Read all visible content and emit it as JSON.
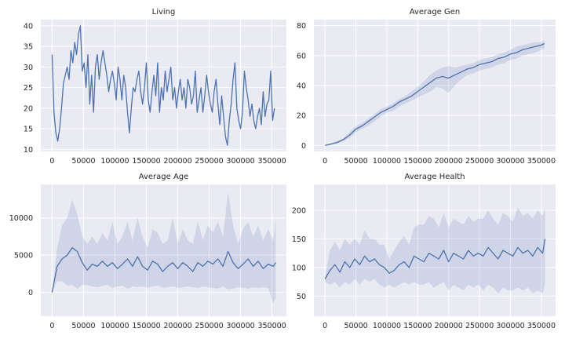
{
  "chart_data": [
    {
      "type": "line",
      "title": "Living",
      "xlabel": "",
      "ylabel": "",
      "xlim": [
        -18000,
        373000
      ],
      "ylim": [
        9.5,
        41.5
      ],
      "xticks": [
        "0",
        "50000",
        "100000",
        "150000",
        "200000",
        "250000",
        "300000",
        "350000"
      ],
      "yticks": [
        "10",
        "15",
        "20",
        "25",
        "30",
        "35",
        "40"
      ],
      "band": false,
      "grid": true,
      "x": [
        0,
        3000,
        6000,
        9000,
        12000,
        15000,
        18000,
        21000,
        24000,
        27000,
        30000,
        33000,
        36000,
        39000,
        42000,
        45000,
        48000,
        51000,
        54000,
        57000,
        60000,
        63000,
        66000,
        69000,
        72000,
        75000,
        78000,
        81000,
        84000,
        87000,
        90000,
        93000,
        96000,
        99000,
        102000,
        105000,
        108000,
        111000,
        114000,
        117000,
        120000,
        123000,
        126000,
        129000,
        132000,
        135000,
        138000,
        141000,
        144000,
        147000,
        150000,
        153000,
        156000,
        159000,
        162000,
        165000,
        168000,
        171000,
        174000,
        177000,
        180000,
        183000,
        186000,
        189000,
        192000,
        195000,
        198000,
        201000,
        204000,
        207000,
        210000,
        213000,
        216000,
        219000,
        222000,
        225000,
        228000,
        231000,
        234000,
        237000,
        240000,
        243000,
        246000,
        249000,
        252000,
        255000,
        258000,
        261000,
        264000,
        267000,
        270000,
        273000,
        276000,
        279000,
        282000,
        285000,
        288000,
        291000,
        294000,
        297000,
        300000,
        303000,
        306000,
        309000,
        312000,
        315000,
        318000,
        321000,
        324000,
        327000,
        330000,
        333000,
        336000,
        339000,
        342000,
        345000,
        348000,
        351000,
        354000
      ],
      "values": [
        33,
        19,
        14,
        12,
        15,
        20,
        26,
        28,
        30,
        27,
        34,
        31,
        36,
        33,
        38,
        40,
        29,
        31,
        25,
        33,
        21,
        28,
        19,
        30,
        33,
        27,
        31,
        34,
        31,
        28,
        24,
        27,
        29,
        26,
        22,
        30,
        27,
        22,
        28,
        25,
        19,
        14,
        20,
        25,
        24,
        27,
        29,
        24,
        21,
        25,
        31,
        22,
        19,
        24,
        28,
        23,
        31,
        19,
        25,
        22,
        29,
        24,
        27,
        30,
        22,
        25,
        20,
        24,
        27,
        22,
        25,
        20,
        27,
        25,
        21,
        23,
        29,
        19,
        22,
        25,
        19,
        23,
        28,
        24,
        21,
        19,
        24,
        27,
        21,
        16,
        23,
        18,
        13,
        11,
        17,
        21,
        27,
        31,
        20,
        17,
        15,
        19,
        29,
        25,
        22,
        18,
        21,
        17,
        15,
        18,
        20,
        16,
        24,
        18,
        21,
        22,
        29,
        17,
        20
      ]
    },
    {
      "type": "line",
      "title": "Average Gen",
      "xlabel": "",
      "ylabel": "",
      "xlim": [
        -18000,
        373000
      ],
      "ylim": [
        -4,
        84
      ],
      "xticks": [
        "0",
        "50000",
        "100000",
        "150000",
        "200000",
        "250000",
        "300000",
        "350000"
      ],
      "yticks": [
        "0",
        "20",
        "40",
        "60",
        "80"
      ],
      "band": true,
      "grid": true,
      "x": [
        0,
        10000,
        20000,
        30000,
        40000,
        50000,
        60000,
        70000,
        80000,
        90000,
        100000,
        110000,
        120000,
        130000,
        140000,
        150000,
        160000,
        170000,
        180000,
        190000,
        200000,
        210000,
        220000,
        230000,
        240000,
        250000,
        260000,
        270000,
        280000,
        290000,
        300000,
        310000,
        320000,
        330000,
        340000,
        350000,
        355000
      ],
      "values": [
        0,
        1,
        2,
        4,
        7,
        11,
        13,
        16,
        19,
        22,
        24,
        26,
        29,
        31,
        33,
        36,
        39,
        42,
        45,
        46,
        45,
        47,
        49,
        51,
        52,
        54,
        55,
        56,
        58,
        59,
        61,
        62,
        64,
        65,
        66,
        67,
        68
      ],
      "band_lower": [
        0,
        0.5,
        1.5,
        3,
        5,
        9,
        11,
        13,
        16,
        19,
        22,
        23,
        26,
        28,
        30,
        32,
        34,
        36,
        39,
        38,
        35,
        40,
        44,
        47,
        48,
        50,
        51,
        52,
        54,
        55,
        57,
        58,
        60,
        61,
        62,
        64,
        65
      ],
      "band_upper": [
        0.5,
        1.5,
        3,
        5,
        9,
        13,
        15,
        18,
        21,
        24,
        26,
        28,
        31,
        33,
        36,
        39,
        43,
        47,
        50,
        52,
        53,
        52,
        53,
        54,
        55,
        57,
        58,
        59,
        61,
        62,
        64,
        66,
        67,
        68,
        69,
        69,
        70
      ]
    },
    {
      "type": "line",
      "title": "Average Age",
      "xlabel": "",
      "ylabel": "",
      "xlim": [
        -18000,
        373000
      ],
      "ylim": [
        -3200,
        14500
      ],
      "xticks": [
        "0",
        "50000",
        "100000",
        "150000",
        "200000",
        "250000",
        "300000",
        "350000"
      ],
      "yticks": [
        "0",
        "5000",
        "10000"
      ],
      "band": true,
      "grid": true,
      "x": [
        0,
        8000,
        16000,
        24000,
        32000,
        40000,
        48000,
        56000,
        64000,
        72000,
        80000,
        88000,
        96000,
        104000,
        112000,
        120000,
        128000,
        136000,
        144000,
        152000,
        160000,
        168000,
        176000,
        184000,
        192000,
        200000,
        208000,
        216000,
        224000,
        232000,
        240000,
        248000,
        256000,
        264000,
        272000,
        280000,
        288000,
        296000,
        304000,
        312000,
        320000,
        328000,
        336000,
        344000,
        352000,
        356000
      ],
      "values": [
        0,
        3500,
        4500,
        5000,
        6000,
        5500,
        4000,
        3000,
        3800,
        3500,
        4200,
        3500,
        4000,
        3200,
        3800,
        4500,
        3500,
        4800,
        3500,
        3000,
        4200,
        3800,
        2800,
        3500,
        4000,
        3200,
        4000,
        3500,
        2800,
        4000,
        3500,
        4200,
        3800,
        4500,
        3500,
        5500,
        4000,
        3200,
        3800,
        4500,
        3500,
        4200,
        3200,
        3800,
        3500,
        4000
      ],
      "band_lower": [
        0,
        1500,
        1500,
        900,
        1000,
        500,
        1000,
        1000,
        800,
        700,
        900,
        1000,
        600,
        800,
        900,
        500,
        800,
        700,
        800,
        600,
        800,
        900,
        600,
        700,
        800,
        600,
        700,
        800,
        700,
        600,
        800,
        700,
        600,
        500,
        800,
        400,
        500,
        700,
        600,
        500,
        700,
        600,
        700,
        600,
        -1500,
        -800
      ],
      "band_upper": [
        0,
        6000,
        9000,
        10000,
        12500,
        10500,
        7500,
        6500,
        7500,
        6500,
        8000,
        7000,
        9500,
        6500,
        7500,
        9500,
        7000,
        10000,
        7500,
        6000,
        8500,
        8000,
        6500,
        7000,
        10000,
        6500,
        8500,
        7000,
        6500,
        9500,
        7000,
        9000,
        8000,
        9500,
        7500,
        13500,
        9000,
        6500,
        8500,
        9500,
        7500,
        9000,
        7000,
        8500,
        7000,
        10000
      ]
    },
    {
      "type": "line",
      "title": "Average Health",
      "xlabel": "",
      "ylabel": "",
      "xlim": [
        -18000,
        373000
      ],
      "ylim": [
        15,
        245
      ],
      "xticks": [
        "0",
        "50000",
        "100000",
        "150000",
        "200000",
        "250000",
        "300000",
        "350000"
      ],
      "yticks": [
        "50",
        "100",
        "150",
        "200"
      ],
      "band": true,
      "grid": true,
      "x": [
        0,
        8000,
        16000,
        24000,
        32000,
        40000,
        48000,
        56000,
        64000,
        72000,
        80000,
        88000,
        96000,
        104000,
        112000,
        120000,
        128000,
        136000,
        144000,
        152000,
        160000,
        168000,
        176000,
        184000,
        192000,
        200000,
        208000,
        216000,
        224000,
        232000,
        240000,
        248000,
        256000,
        264000,
        272000,
        280000,
        288000,
        296000,
        304000,
        312000,
        320000,
        328000,
        336000,
        344000,
        352000,
        356000
      ],
      "values": [
        80,
        95,
        105,
        92,
        110,
        100,
        115,
        105,
        120,
        110,
        115,
        105,
        100,
        90,
        95,
        105,
        110,
        100,
        120,
        115,
        110,
        125,
        120,
        115,
        130,
        110,
        125,
        120,
        115,
        130,
        120,
        125,
        120,
        135,
        125,
        115,
        130,
        125,
        120,
        135,
        125,
        130,
        120,
        135,
        125,
        150
      ],
      "band_lower": [
        75,
        70,
        75,
        65,
        75,
        70,
        80,
        70,
        80,
        75,
        80,
        70,
        65,
        70,
        65,
        70,
        75,
        70,
        75,
        70,
        70,
        75,
        65,
        70,
        75,
        60,
        70,
        65,
        60,
        70,
        65,
        70,
        60,
        70,
        65,
        55,
        65,
        60,
        60,
        65,
        60,
        65,
        55,
        60,
        55,
        70
      ],
      "band_upper": [
        85,
        130,
        145,
        130,
        150,
        140,
        150,
        140,
        165,
        150,
        150,
        140,
        140,
        115,
        130,
        145,
        155,
        140,
        170,
        175,
        175,
        190,
        185,
        170,
        195,
        170,
        185,
        180,
        175,
        190,
        180,
        185,
        185,
        200,
        185,
        175,
        195,
        190,
        180,
        205,
        190,
        195,
        185,
        200,
        190,
        205
      ]
    }
  ]
}
